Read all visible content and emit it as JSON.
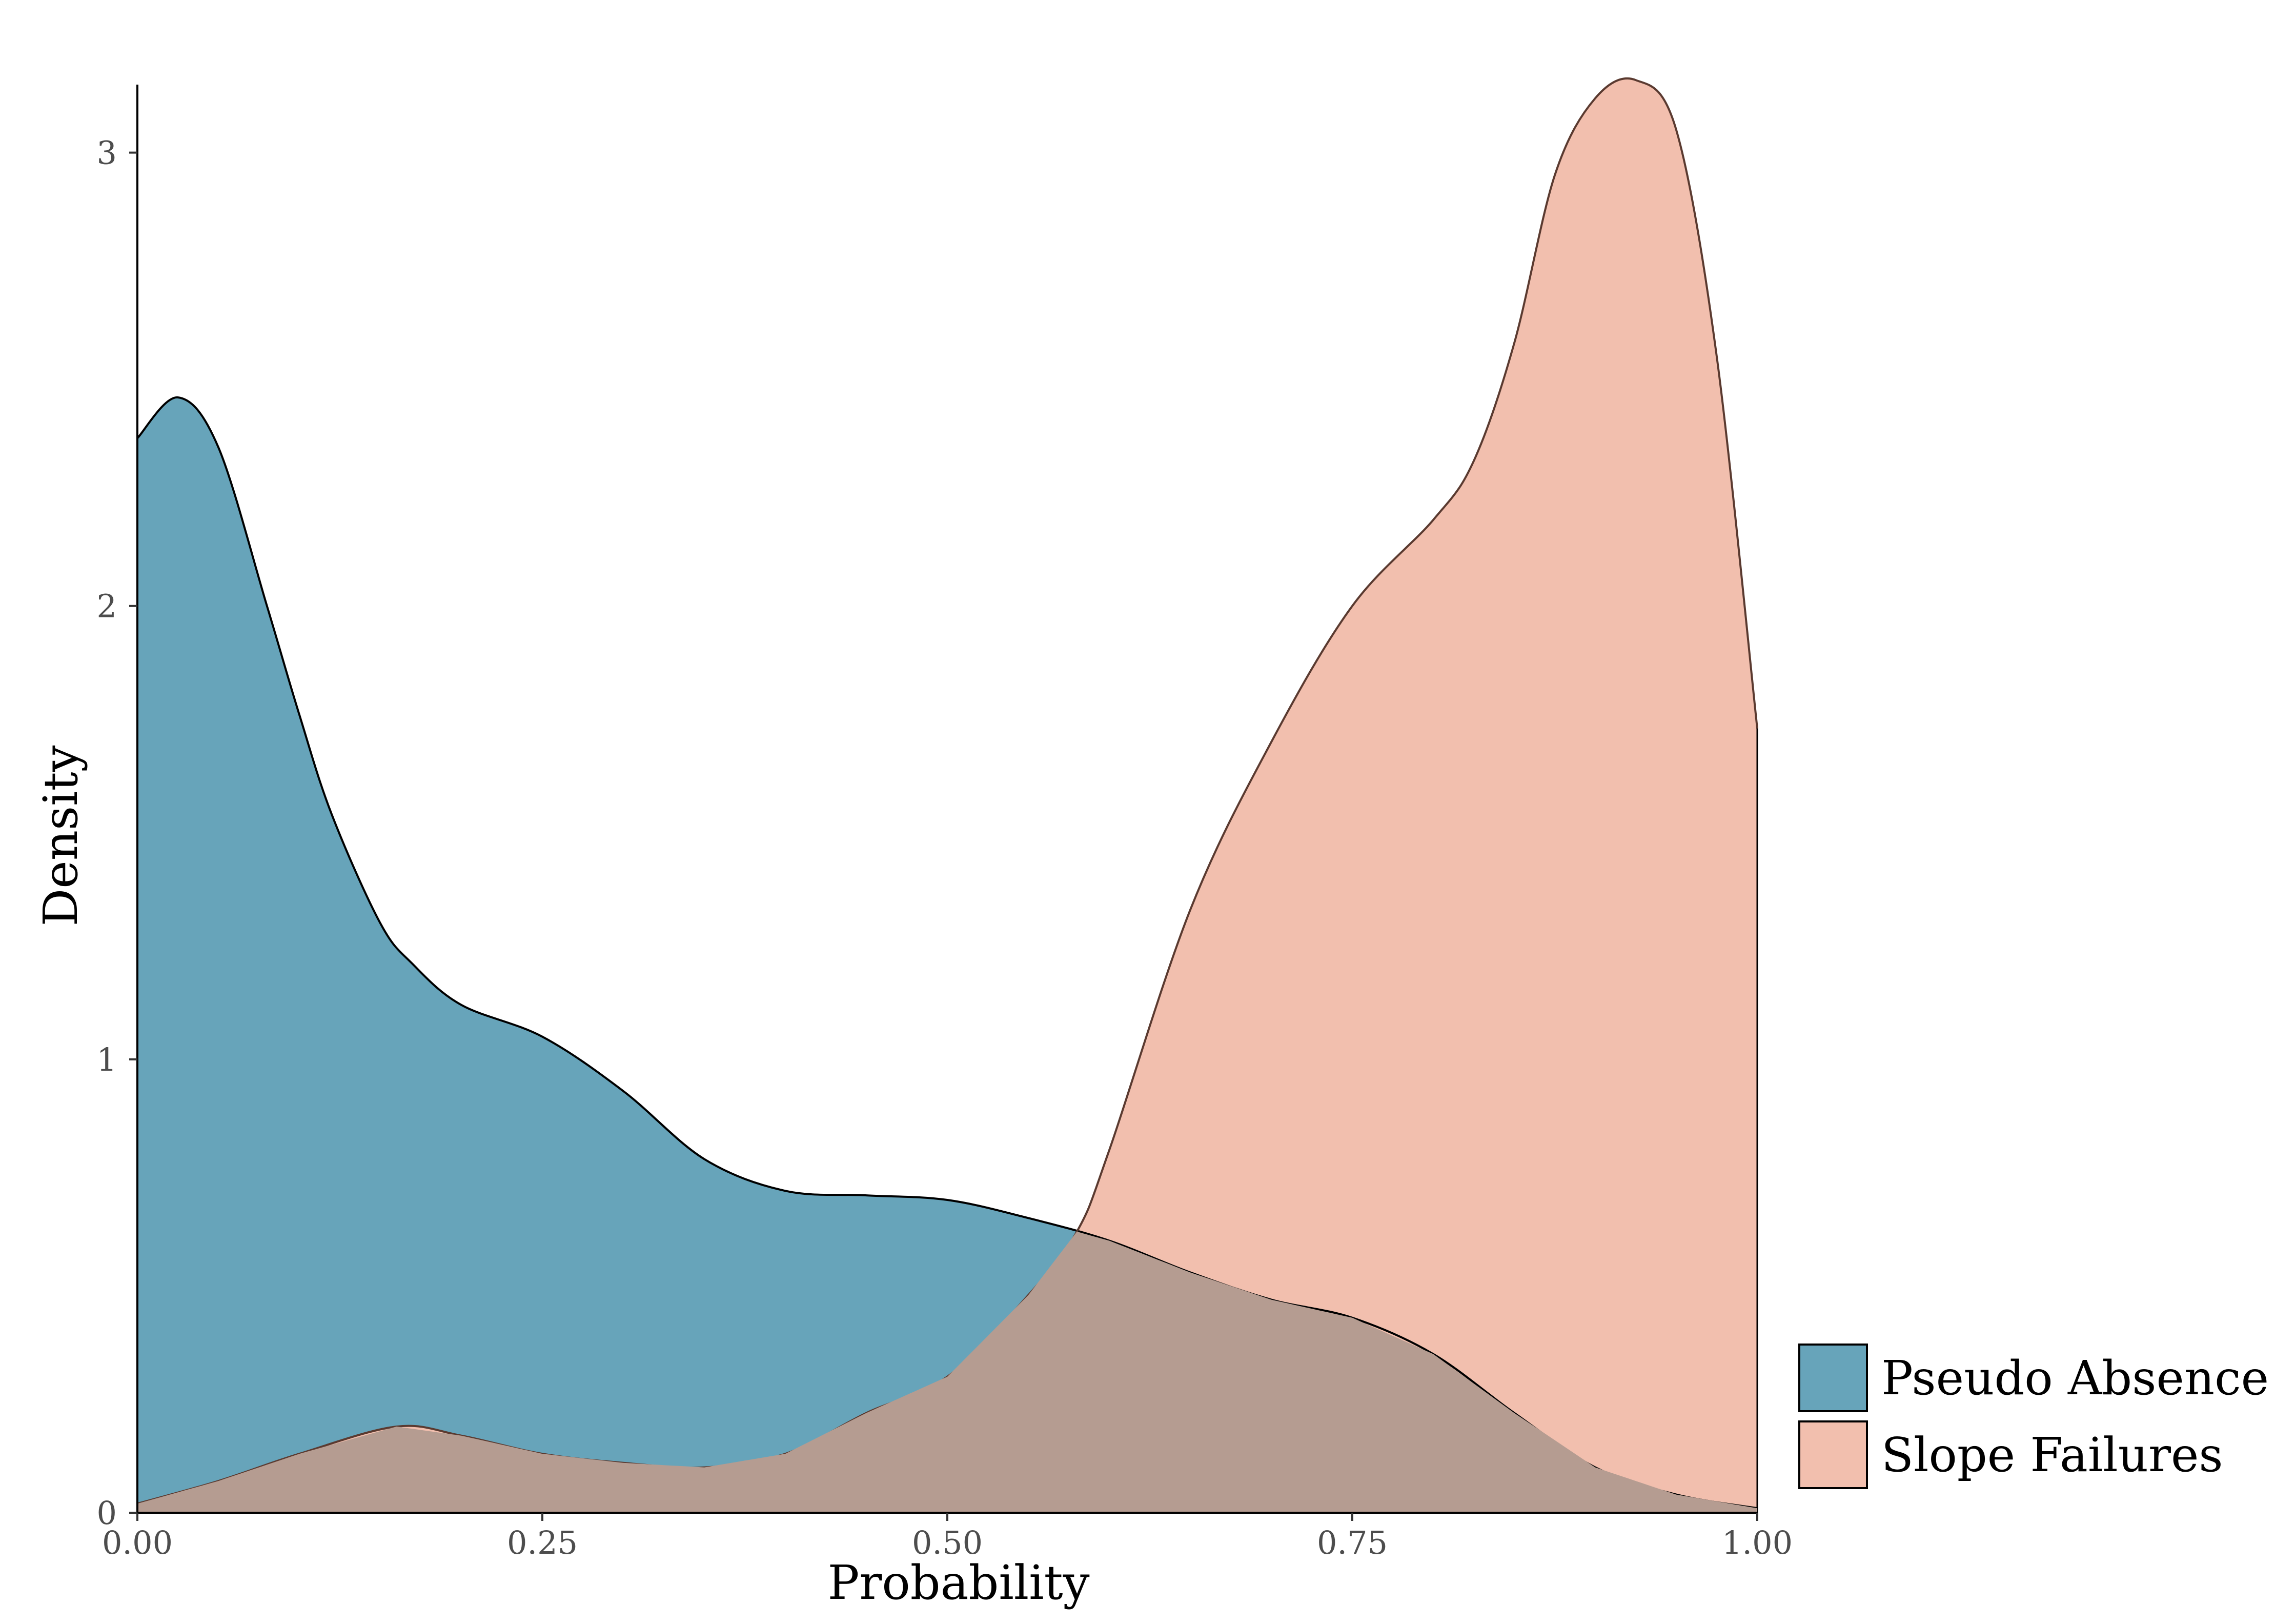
{
  "chart_data": {
    "type": "area",
    "title": "",
    "xlabel": "Probability",
    "ylabel": "Density",
    "xlim": [
      0,
      1
    ],
    "ylim": [
      0,
      3.15
    ],
    "grid": false,
    "legend_position": "bottom-right",
    "x_ticks": [
      {
        "value": 0.0,
        "label": "0.00"
      },
      {
        "value": 0.25,
        "label": "0.25"
      },
      {
        "value": 0.5,
        "label": "0.50"
      },
      {
        "value": 0.75,
        "label": "0.75"
      },
      {
        "value": 1.0,
        "label": "1.00"
      }
    ],
    "y_ticks": [
      {
        "value": 0,
        "label": "0"
      },
      {
        "value": 1,
        "label": "1"
      },
      {
        "value": 2,
        "label": "2"
      },
      {
        "value": 3,
        "label": "3"
      }
    ],
    "series": [
      {
        "name": "Pseudo Absence",
        "color": "#67A4BA",
        "x": [
          0.0,
          0.025,
          0.05,
          0.08,
          0.1,
          0.12,
          0.15,
          0.17,
          0.2,
          0.25,
          0.3,
          0.35,
          0.4,
          0.45,
          0.5,
          0.55,
          0.6,
          0.65,
          0.7,
          0.75,
          0.8,
          0.85,
          0.9,
          0.95,
          1.0
        ],
        "values": [
          2.37,
          2.46,
          2.35,
          2.0,
          1.76,
          1.54,
          1.3,
          1.21,
          1.12,
          1.05,
          0.93,
          0.78,
          0.71,
          0.7,
          0.69,
          0.65,
          0.6,
          0.53,
          0.47,
          0.43,
          0.35,
          0.22,
          0.1,
          0.04,
          0.01
        ]
      },
      {
        "name": "Slope Failures",
        "color": "#F2BFAE",
        "x": [
          0.0,
          0.05,
          0.1,
          0.16,
          0.2,
          0.25,
          0.3,
          0.35,
          0.4,
          0.45,
          0.5,
          0.55,
          0.58,
          0.6,
          0.65,
          0.7,
          0.75,
          0.8,
          0.825,
          0.85,
          0.875,
          0.9,
          0.925,
          0.95,
          0.975,
          1.0
        ],
        "values": [
          0.02,
          0.07,
          0.13,
          0.19,
          0.17,
          0.13,
          0.11,
          0.1,
          0.13,
          0.22,
          0.3,
          0.48,
          0.62,
          0.8,
          1.33,
          1.7,
          2.0,
          2.19,
          2.32,
          2.58,
          2.95,
          3.12,
          3.16,
          3.05,
          2.55,
          1.73
        ]
      }
    ]
  }
}
